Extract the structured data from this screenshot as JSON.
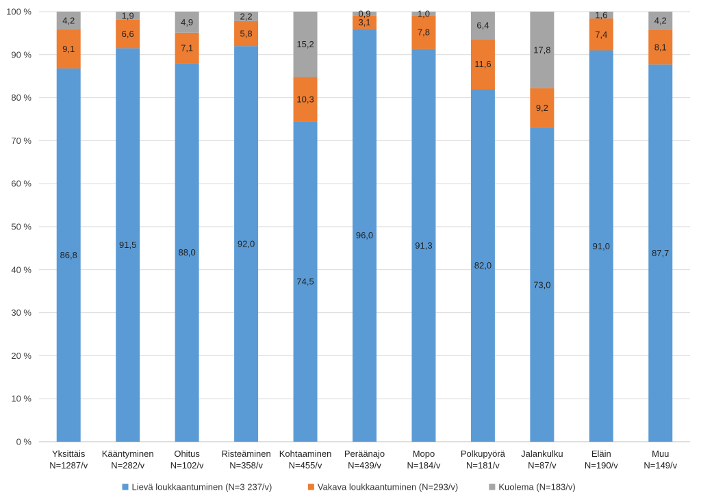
{
  "chart_data": {
    "type": "bar",
    "stacked": true,
    "percent_stacked": true,
    "categories": [
      [
        "Yksittäis",
        "N=1287/v"
      ],
      [
        "Kääntyminen",
        "N=282/v"
      ],
      [
        "Ohitus",
        "N=102/v"
      ],
      [
        "Risteäminen",
        "N=358/v"
      ],
      [
        "Kohtaaminen",
        "N=455/v"
      ],
      [
        "Peräänajo",
        "N=439/v"
      ],
      [
        "Mopo",
        "N=184/v"
      ],
      [
        "Polkupyörä",
        "N=181/v"
      ],
      [
        "Jalankulku",
        "N=87/v"
      ],
      [
        "Eläin",
        "N=190/v"
      ],
      [
        "Muu",
        "N=149/v"
      ]
    ],
    "series": [
      {
        "name": "Lievä loukkaantuminen (N=3 237/v)",
        "color": "#5b9bd5",
        "values": [
          86.8,
          91.5,
          88.0,
          92.0,
          74.5,
          96.0,
          91.3,
          82.0,
          73.0,
          91.0,
          87.7
        ],
        "labels": [
          "86,8",
          "91,5",
          "88,0",
          "92,0",
          "74,5",
          "96,0",
          "91,3",
          "82,0",
          "73,0",
          "91,0",
          "87,7"
        ]
      },
      {
        "name": "Vakava loukkaantuminen (N=293/v)",
        "color": "#ed7d31",
        "values": [
          9.1,
          6.6,
          7.1,
          5.8,
          10.3,
          3.1,
          7.8,
          11.6,
          9.2,
          7.4,
          8.1
        ],
        "labels": [
          "9,1",
          "6,6",
          "7,1",
          "5,8",
          "10,3",
          "3,1",
          "7,8",
          "11,6",
          "9,2",
          "7,4",
          "8,1"
        ]
      },
      {
        "name": "Kuolema (N=183/v)",
        "color": "#a5a5a5",
        "values": [
          4.2,
          1.9,
          4.9,
          2.2,
          15.2,
          0.9,
          1.0,
          6.4,
          17.8,
          1.6,
          4.2
        ],
        "labels": [
          "4,2",
          "1,9",
          "4,9",
          "2,2",
          "15,2",
          "0,9",
          "1,0",
          "6,4",
          "17,8",
          "1,6",
          "4,2"
        ]
      }
    ],
    "yticks": [
      "0 %",
      "10 %",
      "20 %",
      "30 %",
      "40 %",
      "50 %",
      "60 %",
      "70 %",
      "80 %",
      "90 %",
      "100 %"
    ],
    "ylim": [
      0,
      100
    ],
    "grid": true,
    "legend_position": "bottom",
    "title": "",
    "xlabel": "",
    "ylabel": ""
  }
}
